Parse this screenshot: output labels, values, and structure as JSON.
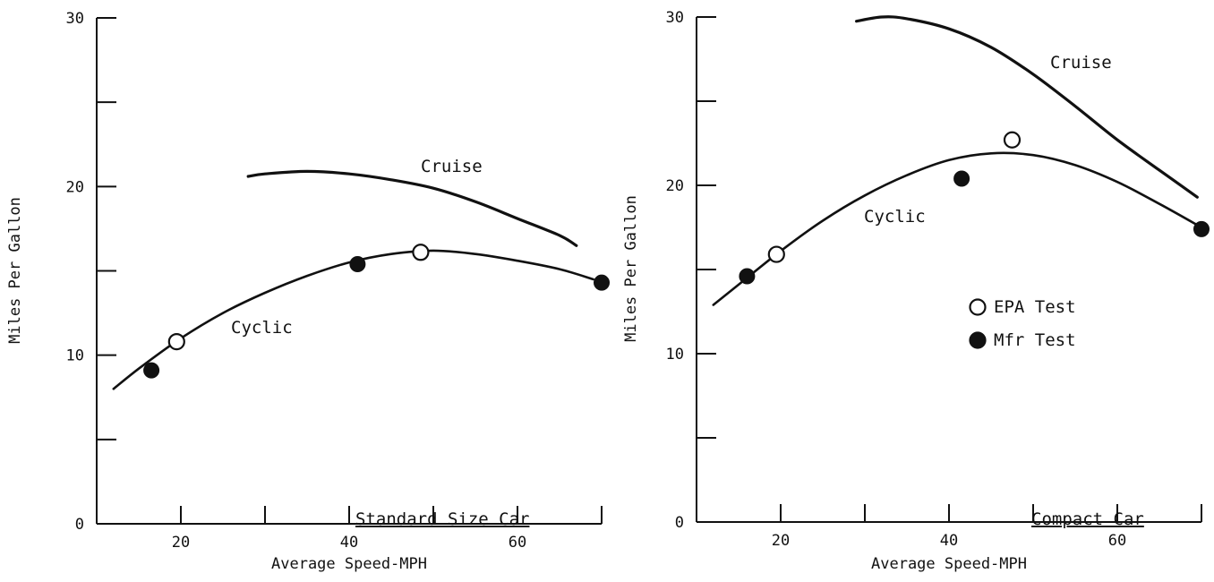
{
  "chart_data": [
    {
      "type": "line",
      "caption": "Standard Size Car",
      "xlabel": "Average Speed-MPH",
      "ylabel": "Miles Per Gallon",
      "xlim": [
        10,
        70
      ],
      "ylim": [
        0,
        30
      ],
      "x_ticks": [
        20,
        40,
        60
      ],
      "y_ticks": [
        0,
        10,
        20,
        30
      ],
      "series": [
        {
          "name": "Cruise",
          "style": "curve",
          "points": [
            [
              28,
              20.6
            ],
            [
              30,
              20.75
            ],
            [
              35,
              20.9
            ],
            [
              40,
              20.75
            ],
            [
              45,
              20.4
            ],
            [
              50,
              19.9
            ],
            [
              55,
              19.1
            ],
            [
              60,
              18.1
            ],
            [
              65,
              17.1
            ],
            [
              67,
              16.5
            ]
          ]
        },
        {
          "name": "Cyclic",
          "style": "curve",
          "points": [
            [
              12,
              8.0
            ],
            [
              15,
              9.2
            ],
            [
              20,
              11.0
            ],
            [
              25,
              12.5
            ],
            [
              30,
              13.7
            ],
            [
              35,
              14.7
            ],
            [
              40,
              15.5
            ],
            [
              45,
              16.0
            ],
            [
              50,
              16.2
            ],
            [
              55,
              16.0
            ],
            [
              60,
              15.6
            ],
            [
              65,
              15.1
            ],
            [
              69,
              14.5
            ]
          ]
        },
        {
          "name": "EPA Test",
          "style": "open-marker",
          "points": [
            [
              19.5,
              10.8
            ],
            [
              48.5,
              16.1
            ]
          ]
        },
        {
          "name": "Mfr Test",
          "style": "filled-marker",
          "points": [
            [
              16.5,
              9.1
            ],
            [
              41,
              15.4
            ],
            [
              70,
              14.3
            ]
          ]
        }
      ]
    },
    {
      "type": "line",
      "caption": "Compact Car",
      "xlabel": "Average Speed-MPH",
      "ylabel": "Miles Per Gallon",
      "xlim": [
        10,
        70
      ],
      "ylim": [
        0,
        30
      ],
      "x_ticks": [
        20,
        40,
        60
      ],
      "y_ticks": [
        0,
        10,
        20,
        30
      ],
      "legend": [
        {
          "label": "EPA Test",
          "marker": "open"
        },
        {
          "label": "Mfr Test",
          "marker": "filled"
        }
      ],
      "series": [
        {
          "name": "Cruise",
          "style": "curve",
          "points": [
            [
              29,
              29.75
            ],
            [
              32,
              30.0
            ],
            [
              35,
              29.9
            ],
            [
              40,
              29.3
            ],
            [
              45,
              28.2
            ],
            [
              50,
              26.6
            ],
            [
              55,
              24.7
            ],
            [
              60,
              22.7
            ],
            [
              65,
              20.9
            ],
            [
              69.5,
              19.3
            ]
          ]
        },
        {
          "name": "Cyclic",
          "style": "curve",
          "points": [
            [
              12,
              12.9
            ],
            [
              15,
              14.1
            ],
            [
              20,
              16.1
            ],
            [
              25,
              17.9
            ],
            [
              30,
              19.4
            ],
            [
              35,
              20.6
            ],
            [
              40,
              21.5
            ],
            [
              45,
              21.9
            ],
            [
              50,
              21.8
            ],
            [
              55,
              21.2
            ],
            [
              60,
              20.2
            ],
            [
              65,
              18.9
            ],
            [
              70,
              17.5
            ]
          ]
        },
        {
          "name": "EPA Test",
          "style": "open-marker",
          "points": [
            [
              19.5,
              15.9
            ],
            [
              47.5,
              22.7
            ]
          ]
        },
        {
          "name": "Mfr Test",
          "style": "filled-marker",
          "points": [
            [
              16,
              14.6
            ],
            [
              41.5,
              20.4
            ],
            [
              70,
              17.4
            ]
          ]
        }
      ]
    }
  ]
}
